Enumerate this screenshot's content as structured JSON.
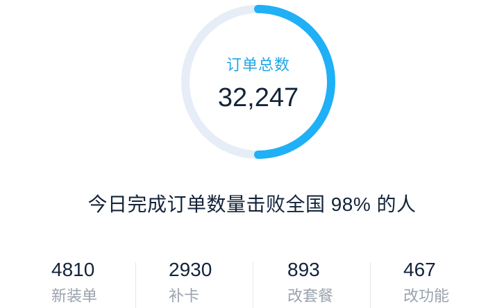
{
  "gauge": {
    "label": "订单总数",
    "value": "32,247",
    "progress": 0.5,
    "track_color": "#e6edf7",
    "fill_color": "#1fb0f5"
  },
  "summary": {
    "text": "今日完成订单数量击败全国 98% 的人"
  },
  "stats": [
    {
      "value": "4810",
      "label": "新装单"
    },
    {
      "value": "2930",
      "label": "补卡"
    },
    {
      "value": "893",
      "label": "改套餐"
    },
    {
      "value": "467",
      "label": "改功能"
    }
  ]
}
